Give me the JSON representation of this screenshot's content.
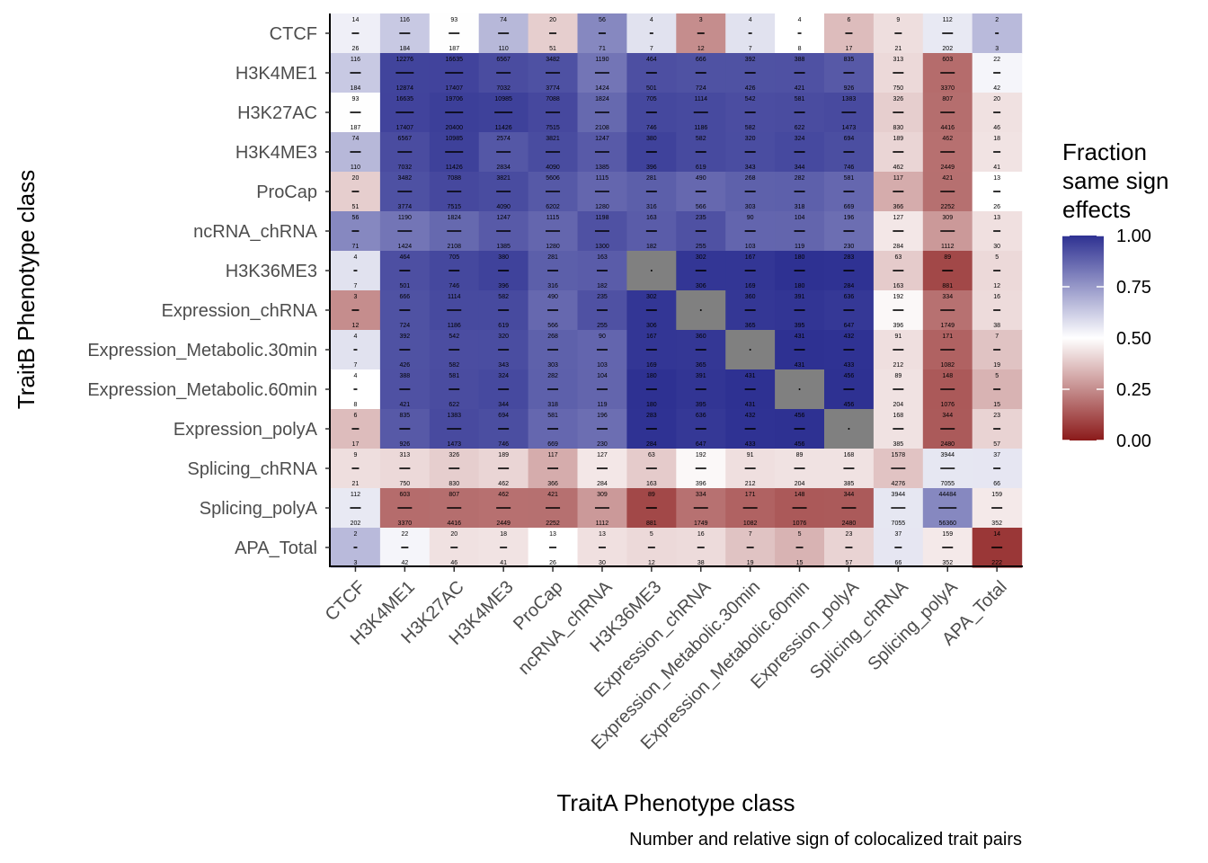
{
  "chart_data": {
    "type": "heatmap",
    "title": "",
    "xlabel": "TraitA Phenotype class",
    "ylabel": "TraitB Phenotype class",
    "caption": "Number and relative sign of colocalized trait pairs",
    "categories": [
      "CTCF",
      "H3K4ME1",
      "H3K27AC",
      "H3K4ME3",
      "ProCap",
      "ncRNA_chRNA",
      "H3K36ME3",
      "Expression_chRNA",
      "Expression_Metabolic.30min",
      "Expression_Metabolic.60min",
      "Expression_polyA",
      "Splicing_chRNA",
      "Splicing_polyA",
      "APA_Total"
    ],
    "cells": [
      [
        [
          14,
          26
        ],
        [
          116,
          184
        ],
        [
          93,
          187
        ],
        [
          74,
          110
        ],
        [
          20,
          51
        ],
        [
          56,
          71
        ],
        [
          4,
          7
        ],
        [
          3,
          12
        ],
        [
          4,
          7
        ],
        [
          4,
          8
        ],
        [
          6,
          17
        ],
        [
          9,
          21
        ],
        [
          112,
          202
        ],
        [
          2,
          3
        ]
      ],
      [
        [
          116,
          184
        ],
        [
          12276,
          12874
        ],
        [
          16635,
          17407
        ],
        [
          6567,
          7032
        ],
        [
          3482,
          3774
        ],
        [
          1190,
          1424
        ],
        [
          464,
          501
        ],
        [
          666,
          724
        ],
        [
          392,
          426
        ],
        [
          388,
          421
        ],
        [
          835,
          926
        ],
        [
          313,
          750
        ],
        [
          603,
          3370
        ],
        [
          22,
          42
        ]
      ],
      [
        [
          93,
          187
        ],
        [
          16635,
          17407
        ],
        [
          19706,
          20400
        ],
        [
          10985,
          11426
        ],
        [
          7088,
          7515
        ],
        [
          1824,
          2108
        ],
        [
          705,
          746
        ],
        [
          1114,
          1186
        ],
        [
          542,
          582
        ],
        [
          581,
          622
        ],
        [
          1383,
          1473
        ],
        [
          326,
          830
        ],
        [
          807,
          4416
        ],
        [
          20,
          46
        ]
      ],
      [
        [
          74,
          110
        ],
        [
          6567,
          7032
        ],
        [
          10985,
          11426
        ],
        [
          2574,
          2834
        ],
        [
          3821,
          4090
        ],
        [
          1247,
          1385
        ],
        [
          380,
          396
        ],
        [
          582,
          619
        ],
        [
          320,
          343
        ],
        [
          324,
          344
        ],
        [
          694,
          746
        ],
        [
          189,
          462
        ],
        [
          462,
          2449
        ],
        [
          18,
          41
        ]
      ],
      [
        [
          20,
          51
        ],
        [
          3482,
          3774
        ],
        [
          7088,
          7515
        ],
        [
          3821,
          4090
        ],
        [
          5606,
          6202
        ],
        [
          1115,
          1280
        ],
        [
          281,
          316
        ],
        [
          490,
          566
        ],
        [
          268,
          303
        ],
        [
          282,
          318
        ],
        [
          581,
          669
        ],
        [
          117,
          366
        ],
        [
          421,
          2252
        ],
        [
          13,
          26
        ]
      ],
      [
        [
          56,
          71
        ],
        [
          1190,
          1424
        ],
        [
          1824,
          2108
        ],
        [
          1247,
          1385
        ],
        [
          1115,
          1280
        ],
        [
          1198,
          1300
        ],
        [
          163,
          182
        ],
        [
          235,
          255
        ],
        [
          90,
          103
        ],
        [
          104,
          119
        ],
        [
          196,
          230
        ],
        [
          127,
          284
        ],
        [
          309,
          1112
        ],
        [
          13,
          30
        ]
      ],
      [
        [
          4,
          7
        ],
        [
          464,
          501
        ],
        [
          705,
          746
        ],
        [
          380,
          396
        ],
        [
          281,
          316
        ],
        [
          163,
          182
        ],
        null,
        [
          302,
          306
        ],
        [
          167,
          169
        ],
        [
          180,
          180
        ],
        [
          283,
          284
        ],
        [
          63,
          163
        ],
        [
          89,
          881
        ],
        [
          5,
          12
        ]
      ],
      [
        [
          3,
          12
        ],
        [
          666,
          724
        ],
        [
          1114,
          1186
        ],
        [
          582,
          619
        ],
        [
          490,
          566
        ],
        [
          235,
          255
        ],
        [
          302,
          306
        ],
        null,
        [
          360,
          365
        ],
        [
          391,
          395
        ],
        [
          636,
          647
        ],
        [
          192,
          396
        ],
        [
          334,
          1749
        ],
        [
          16,
          38
        ]
      ],
      [
        [
          4,
          7
        ],
        [
          392,
          426
        ],
        [
          542,
          582
        ],
        [
          320,
          343
        ],
        [
          268,
          303
        ],
        [
          90,
          103
        ],
        [
          167,
          169
        ],
        [
          360,
          365
        ],
        null,
        [
          431,
          431
        ],
        [
          432,
          433
        ],
        [
          91,
          212
        ],
        [
          171,
          1082
        ],
        [
          7,
          19
        ]
      ],
      [
        [
          4,
          8
        ],
        [
          388,
          421
        ],
        [
          581,
          622
        ],
        [
          324,
          344
        ],
        [
          282,
          318
        ],
        [
          104,
          119
        ],
        [
          180,
          180
        ],
        [
          391,
          395
        ],
        [
          431,
          431
        ],
        null,
        [
          456,
          456
        ],
        [
          89,
          204
        ],
        [
          148,
          1076
        ],
        [
          5,
          15
        ]
      ],
      [
        [
          6,
          17
        ],
        [
          835,
          926
        ],
        [
          1383,
          1473
        ],
        [
          694,
          746
        ],
        [
          581,
          669
        ],
        [
          196,
          230
        ],
        [
          283,
          284
        ],
        [
          636,
          647
        ],
        [
          432,
          433
        ],
        [
          456,
          456
        ],
        null,
        [
          168,
          385
        ],
        [
          344,
          2480
        ],
        [
          23,
          57
        ]
      ],
      [
        [
          9,
          21
        ],
        [
          313,
          750
        ],
        [
          326,
          830
        ],
        [
          189,
          462
        ],
        [
          117,
          366
        ],
        [
          127,
          284
        ],
        [
          63,
          163
        ],
        [
          192,
          396
        ],
        [
          91,
          212
        ],
        [
          89,
          204
        ],
        [
          168,
          385
        ],
        [
          1578,
          4276
        ],
        [
          3944,
          7055
        ],
        [
          37,
          66
        ]
      ],
      [
        [
          112,
          202
        ],
        [
          603,
          3370
        ],
        [
          807,
          4416
        ],
        [
          462,
          2449
        ],
        [
          421,
          2252
        ],
        [
          309,
          1112
        ],
        [
          89,
          881
        ],
        [
          334,
          1749
        ],
        [
          171,
          1082
        ],
        [
          148,
          1076
        ],
        [
          344,
          2480
        ],
        [
          3944,
          7055
        ],
        [
          44484,
          56360
        ],
        [
          159,
          352
        ]
      ],
      [
        [
          2,
          3
        ],
        [
          22,
          42
        ],
        [
          20,
          46
        ],
        [
          18,
          41
        ],
        [
          13,
          26
        ],
        [
          13,
          30
        ],
        [
          5,
          12
        ],
        [
          16,
          38
        ],
        [
          7,
          19
        ],
        [
          5,
          15
        ],
        [
          23,
          57
        ],
        [
          37,
          66
        ],
        [
          159,
          352
        ],
        [
          14,
          222
        ]
      ]
    ],
    "color_scale": {
      "title": "Fraction\nsame sign\neffects",
      "domain": [
        0,
        1
      ],
      "breaks": [
        "0.00",
        "0.25",
        "0.50",
        "0.75",
        "1.00"
      ],
      "low": "#8b1a1a",
      "mid": "#ffffff",
      "high": "#2e3192",
      "na_color": "#808080"
    },
    "legend_placement": "right",
    "grid": false
  }
}
